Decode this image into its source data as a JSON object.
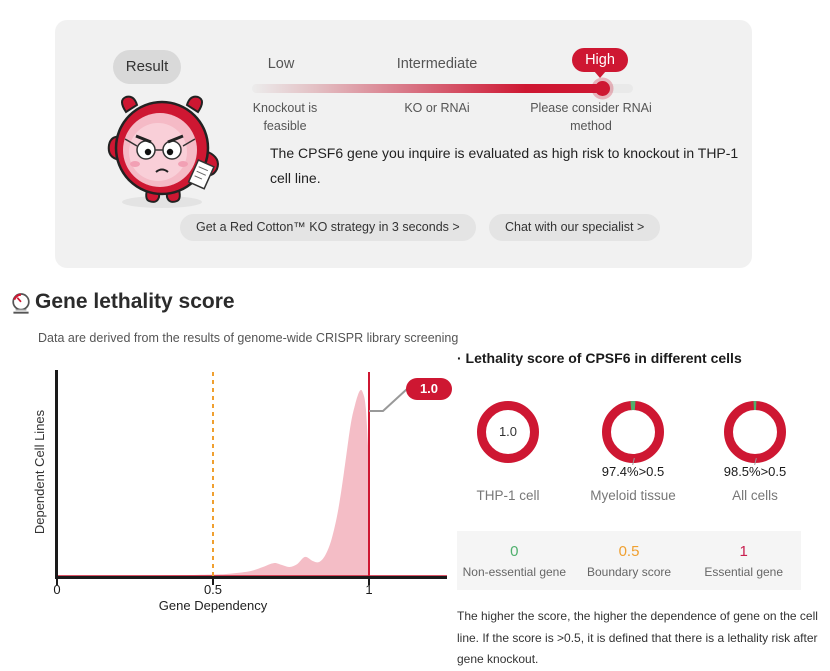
{
  "colors": {
    "accent_red": "#ce1732",
    "density_pink": "#f4bdc6",
    "boundary_orange": "#f0a030",
    "green": "#4fb06d",
    "legend_red": "#c81e4e"
  },
  "result_card": {
    "bubble_label": "Result",
    "risk_levels": [
      {
        "label": "Low",
        "desc": "Knockout is feasible"
      },
      {
        "label": "Intermediate",
        "desc": "KO or RNAi"
      },
      {
        "label": "High",
        "desc": "Please consider RNAi method"
      }
    ],
    "selected_level": "High",
    "message": "The CPSF6 gene you inquire is evaluated as high risk to knockout in THP-1 cell line.",
    "primary_button": "Get a Red Cotton™ KO strategy in 3 seconds >",
    "secondary_button": "Chat with our specialist >"
  },
  "section_header": {
    "title": "Gene lethality score",
    "subtitle": "Data are derived from the results of genome-wide CRISPR library screening"
  },
  "chart_data": {
    "type": "area",
    "xlabel": "Gene Dependency",
    "ylabel": "Dependent Cell Lines",
    "xlim": [
      0,
      1.25
    ],
    "grid": false,
    "xticks": [
      {
        "value": 0,
        "label": "0"
      },
      {
        "value": 0.5,
        "label": "0.5"
      },
      {
        "value": 1,
        "label": "1"
      }
    ],
    "boundary_line": {
      "x": 0.5,
      "style": "dashed"
    },
    "score_line": {
      "x": 1.0,
      "style": "solid"
    },
    "annotation": {
      "label": "1.0",
      "x": 1.0
    },
    "density": {
      "x": [
        0,
        0.3,
        0.5,
        0.56,
        0.62,
        0.66,
        0.695,
        0.72,
        0.745,
        0.77,
        0.795,
        0.82,
        0.84,
        0.86,
        0.88,
        0.9,
        0.92,
        0.94,
        0.955,
        0.97,
        0.98,
        0.99,
        1.0
      ],
      "y": [
        0.005,
        0.007,
        0.012,
        0.017,
        0.029,
        0.049,
        0.068,
        0.059,
        0.049,
        0.063,
        0.098,
        0.078,
        0.073,
        0.107,
        0.185,
        0.317,
        0.512,
        0.732,
        0.839,
        0.907,
        0.9,
        0.82,
        0.546
      ],
      "y_units": "relative density (fraction of plot height)"
    }
  },
  "cells_panel": {
    "title": "· Lethality score of CPSF6 in different cells",
    "donuts": [
      {
        "label": "THP-1 cell",
        "center_text": "1.0",
        "score_gt_half_pct": 100,
        "sub_label": ""
      },
      {
        "label": "Myeloid tissue",
        "center_text": "",
        "score_gt_half_pct": 97.4,
        "sub_label": "97.4%>0.5"
      },
      {
        "label": "All cells",
        "center_text": "",
        "score_gt_half_pct": 98.5,
        "sub_label": "98.5%>0.5"
      }
    ],
    "legend": [
      {
        "value": "0",
        "label": "Non-essential gene",
        "color": "#4fb06d"
      },
      {
        "value": "0.5",
        "label": "Boundary score",
        "color": "#f0a030"
      },
      {
        "value": "1",
        "label": "Essential gene",
        "color": "#c81e4e"
      }
    ],
    "note": "The higher the score, the higher the dependence of gene on the cell line. If the score is >0.5, it is defined that there is a lethality risk after gene knockout."
  }
}
